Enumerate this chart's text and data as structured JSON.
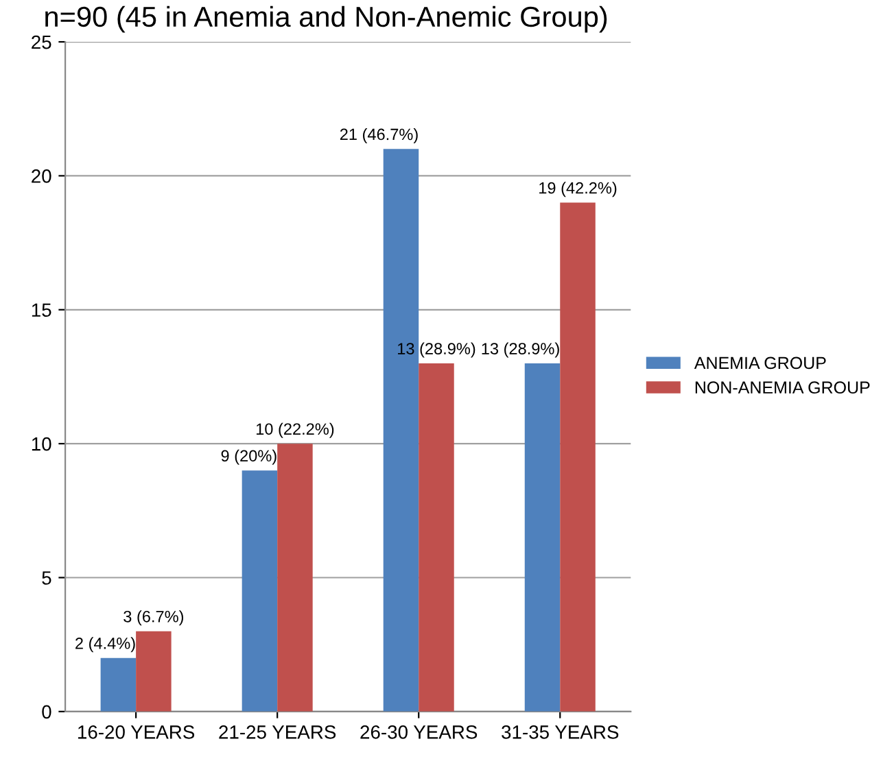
{
  "chart_data": {
    "type": "bar",
    "title": "n=90 (45 in Anemia and Non-Anemic Group)",
    "categories": [
      "16-20 YEARS",
      "21-25 YEARS",
      "26-30 YEARS",
      "31-35 YEARS"
    ],
    "series": [
      {
        "name": "ANEMIA GROUP",
        "color": "#4f81bd",
        "values": [
          2,
          9,
          21,
          13
        ],
        "value_labels": [
          "2 (4.4%)",
          "9 (20%)",
          "21 (46.7%)",
          "13 (28.9%)"
        ]
      },
      {
        "name": "NON-ANEMIA GROUP",
        "color": "#c0504d",
        "values": [
          3,
          10,
          13,
          19
        ],
        "value_labels": [
          "3 (6.7%)",
          "10 (22.2%)",
          "13 (28.9%)",
          "19 (42.2%)"
        ]
      }
    ],
    "ylim": [
      0,
      25
    ],
    "yticks": [
      0,
      5,
      10,
      15,
      20,
      25
    ],
    "grid": "y",
    "legend": "right"
  }
}
